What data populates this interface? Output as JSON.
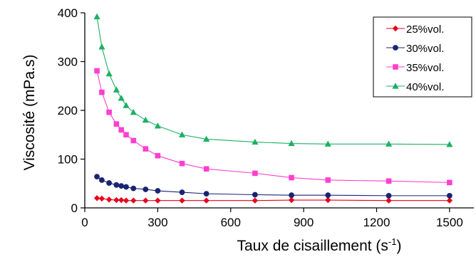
{
  "chart_data": {
    "type": "line",
    "xlabel": "Taux de cisaillement (s",
    "xlabel_sup": "-1",
    "xlabel_end": ")",
    "ylabel": "Viscosité (mPa.s)",
    "xlim": [
      0,
      1600
    ],
    "ylim": [
      0,
      400
    ],
    "xticks": [
      0,
      300,
      600,
      900,
      1200,
      1500
    ],
    "yticks": [
      0,
      100,
      200,
      300,
      400
    ],
    "grid": false,
    "legend_position": "top-right",
    "series": [
      {
        "name": "25%vol.",
        "color": "#e8001c",
        "marker": "diamond",
        "x": [
          50,
          70,
          100,
          130,
          150,
          170,
          200,
          250,
          300,
          400,
          500,
          700,
          850,
          1000,
          1250,
          1500
        ],
        "y": [
          20,
          19,
          17,
          16,
          16,
          15,
          15,
          15,
          15,
          15,
          15,
          15,
          16,
          16,
          15,
          15
        ]
      },
      {
        "name": "30%vol.",
        "color": "#1a2470",
        "marker": "circle",
        "x": [
          50,
          70,
          100,
          130,
          150,
          170,
          200,
          250,
          300,
          400,
          500,
          700,
          850,
          1000,
          1250,
          1500
        ],
        "y": [
          64,
          57,
          51,
          47,
          45,
          43,
          40,
          38,
          35,
          32,
          29,
          27,
          26,
          26,
          25,
          25
        ]
      },
      {
        "name": "35%vol.",
        "color": "#ff3fcf",
        "marker": "square",
        "x": [
          50,
          70,
          100,
          130,
          150,
          170,
          200,
          250,
          300,
          400,
          500,
          700,
          850,
          1000,
          1250,
          1500
        ],
        "y": [
          281,
          237,
          196,
          172,
          160,
          150,
          138,
          121,
          107,
          91,
          80,
          71,
          62,
          57,
          55,
          52
        ]
      },
      {
        "name": "40%vol.",
        "color": "#1db063",
        "marker": "triangle",
        "x": [
          50,
          70,
          100,
          130,
          150,
          170,
          200,
          250,
          300,
          400,
          500,
          700,
          850,
          1000,
          1250,
          1500
        ],
        "y": [
          392,
          330,
          275,
          242,
          225,
          210,
          196,
          180,
          168,
          150,
          141,
          135,
          132,
          131,
          131,
          130
        ]
      }
    ]
  }
}
